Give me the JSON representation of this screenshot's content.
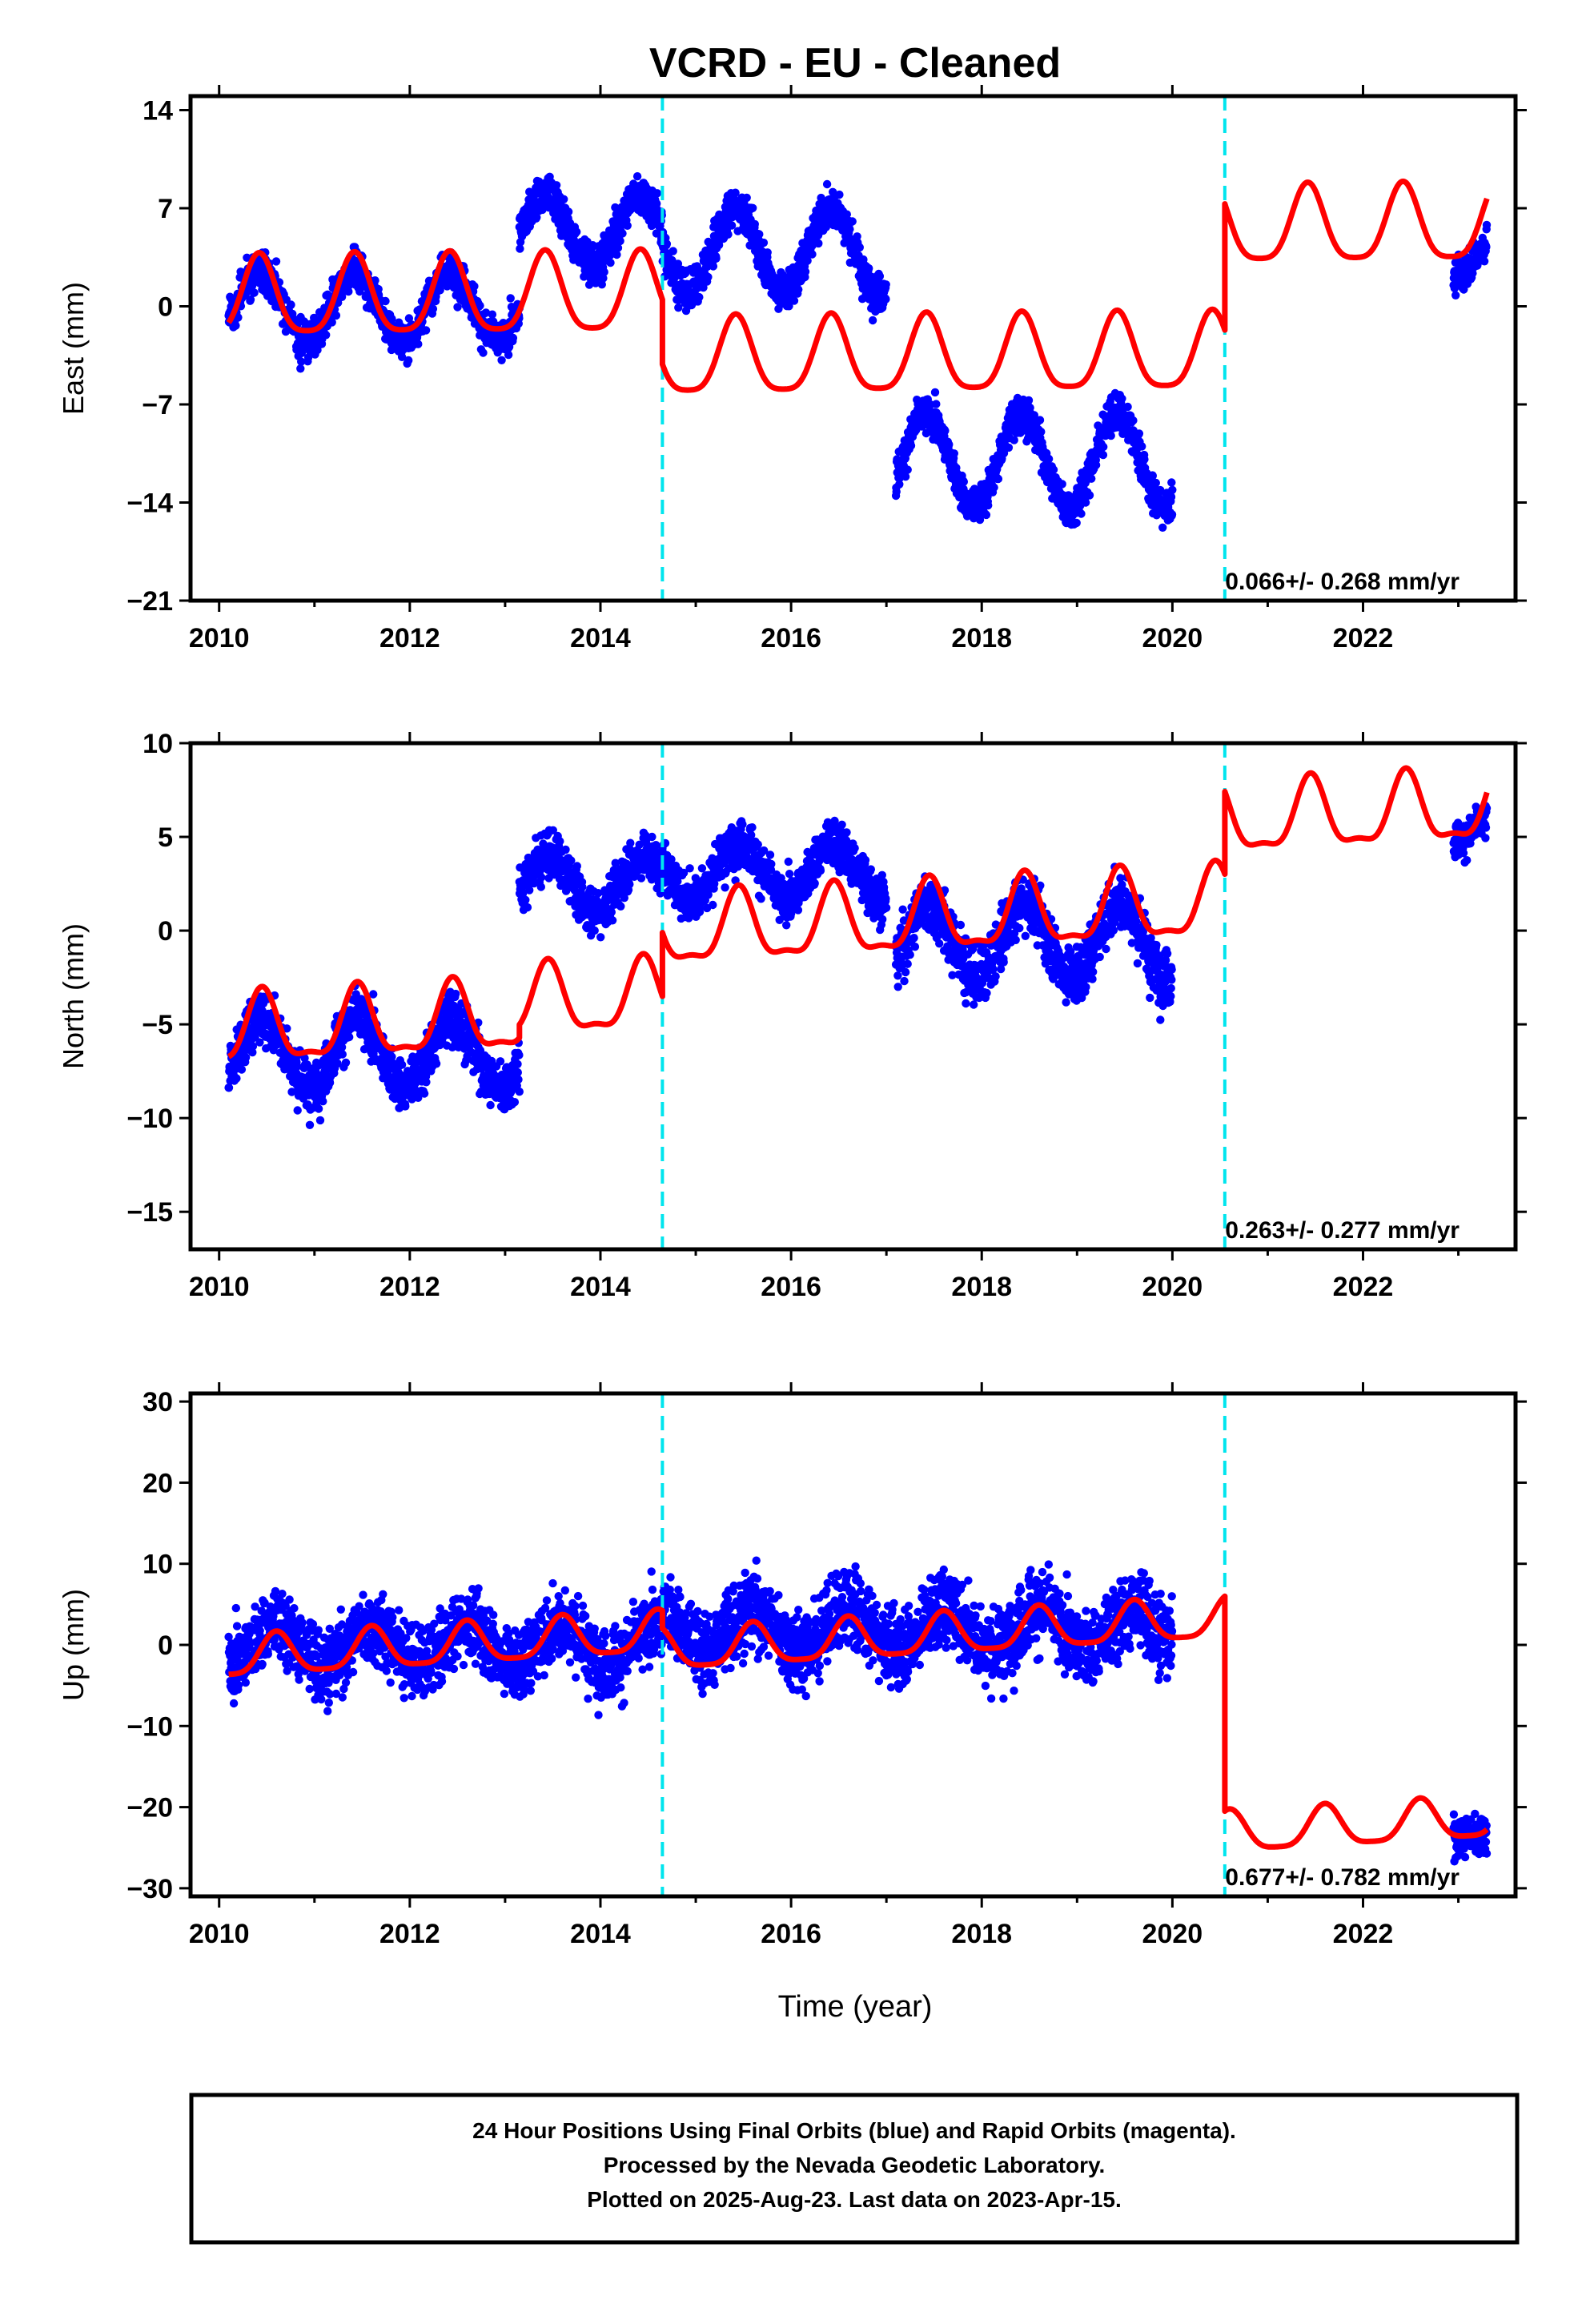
{
  "title": "VCRD  - EU - Cleaned",
  "xlabel": "Time (year)",
  "caption": {
    "line1": "24 Hour Positions Using Final Orbits (blue) and Rapid Orbits (magenta).",
    "line2": "Processed by the Nevada Geodetic Laboratory.",
    "line3": "Plotted on 2025-Aug-23. Last data on 2023-Apr-15."
  },
  "colors": {
    "points": "#0000ff",
    "model": "#ff0000",
    "breaks": "#00e5ee",
    "frame": "#000000"
  },
  "chart_data": [
    {
      "type": "scatter",
      "component": "east",
      "ylabel": "East (mm)",
      "xlim": [
        2009.7,
        2023.6
      ],
      "ylim": [
        -21,
        15
      ],
      "xticks": [
        2010,
        2012,
        2014,
        2016,
        2018,
        2020,
        2022
      ],
      "yticks": [
        -21,
        -14,
        -7,
        0,
        7,
        14
      ],
      "rate_text": "0.066+/- 0.268 mm/yr",
      "breaks": [
        2014.65,
        2020.55
      ],
      "data_segments": [
        {
          "start": 2010.1,
          "end": 2013.15,
          "base": 0.0,
          "amp": 2.5,
          "phase": 2010.42,
          "noise": 1.8
        },
        {
          "start": 2013.15,
          "end": 2014.65,
          "base": 5.5,
          "amp": 2.5,
          "phase": 2010.42,
          "noise": 1.8
        },
        {
          "start": 2014.65,
          "end": 2017.0,
          "base": 4.0,
          "amp": 3.0,
          "phase": 2010.42,
          "noise": 1.8
        },
        {
          "start": 2017.1,
          "end": 2020.0,
          "base": -11.0,
          "amp": 3.3,
          "phase": 2010.42,
          "noise": 1.7
        },
        {
          "start": 2022.95,
          "end": 2023.3,
          "base": 3.5,
          "amp": 1.5,
          "phase": 2010.42,
          "noise": 1.6
        }
      ],
      "model": [
        {
          "start": 2010.1,
          "end": 2014.65,
          "base": 0.4,
          "trend": 0.066,
          "amp": 2.8,
          "phase": 2010.42
        },
        {
          "start": 2014.65,
          "end": 2020.55,
          "base": -4.2,
          "trend": 0.066,
          "amp": 2.7,
          "phase": 2010.42
        },
        {
          "start": 2020.55,
          "end": 2023.3,
          "base": 4.8,
          "trend": 0.066,
          "amp": 2.7,
          "phase": 2010.42
        }
      ]
    },
    {
      "type": "scatter",
      "component": "north",
      "ylabel": "North (mm)",
      "xlim": [
        2009.7,
        2023.6
      ],
      "ylim": [
        -17,
        10
      ],
      "xticks": [
        2010,
        2012,
        2014,
        2016,
        2018,
        2020,
        2022
      ],
      "yticks": [
        -15,
        -10,
        -5,
        0,
        5,
        10
      ],
      "rate_text": "0.263+/- 0.277 mm/yr",
      "breaks": [
        2014.65,
        2020.55
      ],
      "data_segments": [
        {
          "start": 2010.1,
          "end": 2013.15,
          "base": -6.5,
          "amp": 1.8,
          "phase": 2010.45,
          "noise": 1.8
        },
        {
          "start": 2013.15,
          "end": 2014.65,
          "base": 2.5,
          "amp": 1.5,
          "phase": 2010.45,
          "noise": 1.6
        },
        {
          "start": 2014.65,
          "end": 2017.0,
          "base": 3.2,
          "amp": 1.5,
          "phase": 2010.45,
          "noise": 1.6
        },
        {
          "start": 2017.1,
          "end": 2020.0,
          "base": -0.5,
          "amp": 2.0,
          "phase": 2010.45,
          "noise": 2.0
        },
        {
          "start": 2022.95,
          "end": 2023.3,
          "base": 5.5,
          "amp": 0.8,
          "phase": 2010.45,
          "noise": 1.2
        }
      ],
      "model": [
        {
          "start": 2010.1,
          "end": 2013.15,
          "base": -5.5,
          "trend": 0.263,
          "amp": 1.8,
          "phase": 2010.45
        },
        {
          "start": 2013.15,
          "end": 2014.65,
          "base": -4.8,
          "trend": 0.263,
          "amp": 1.8,
          "phase": 2010.45
        },
        {
          "start": 2014.65,
          "end": 2020.55,
          "base": -1.4,
          "trend": 0.263,
          "amp": 1.8,
          "phase": 2010.45
        },
        {
          "start": 2020.55,
          "end": 2023.3,
          "base": 3.0,
          "trend": 0.263,
          "amp": 1.8,
          "phase": 2010.45
        }
      ]
    },
    {
      "type": "scatter",
      "component": "up",
      "ylabel": "Up (mm)",
      "xlim": [
        2009.7,
        2023.6
      ],
      "ylim": [
        -31,
        31
      ],
      "xticks": [
        2010,
        2012,
        2014,
        2016,
        2018,
        2020,
        2022
      ],
      "yticks": [
        -30,
        -20,
        -10,
        0,
        10,
        20,
        30
      ],
      "rate_text": "0.677+/- 0.782 mm/yr",
      "breaks": [
        2014.65,
        2020.55
      ],
      "data_segments": [
        {
          "start": 2010.1,
          "end": 2014.65,
          "base": 0.0,
          "amp": 2.5,
          "phase": 2010.6,
          "noise": 5.5
        },
        {
          "start": 2014.65,
          "end": 2020.0,
          "base": 2.0,
          "amp": 2.5,
          "phase": 2010.6,
          "noise": 6.0
        },
        {
          "start": 2022.95,
          "end": 2023.3,
          "base": -22.5,
          "amp": 1.0,
          "phase": 2010.6,
          "noise": 3.5
        }
      ],
      "model": [
        {
          "start": 2010.1,
          "end": 2014.65,
          "base": -1.8,
          "trend": 0.677,
          "amp": 2.5,
          "phase": 2010.6
        },
        {
          "start": 2014.65,
          "end": 2020.55,
          "base": -4.0,
          "trend": 0.677,
          "amp": 2.5,
          "phase": 2010.6
        },
        {
          "start": 2020.55,
          "end": 2023.3,
          "base": -30.5,
          "trend": 0.677,
          "amp": 2.5,
          "phase": 2010.6
        }
      ]
    }
  ]
}
